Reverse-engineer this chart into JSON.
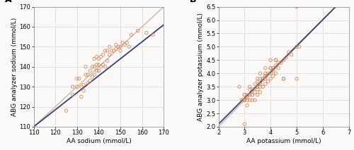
{
  "panel_A": {
    "label": "A",
    "xlabel": "AA sodium (mmol/L)",
    "ylabel": "ABG analyzer sodium (mmol/L)",
    "xlim": [
      110,
      170
    ],
    "ylim": [
      110,
      170
    ],
    "xticks": [
      110,
      120,
      130,
      140,
      150,
      160,
      170
    ],
    "yticks": [
      110,
      120,
      130,
      140,
      150,
      160,
      170
    ],
    "scatter_x": [
      125,
      128,
      128,
      130,
      130,
      131,
      132,
      132,
      133,
      133,
      134,
      134,
      135,
      135,
      136,
      136,
      137,
      137,
      138,
      138,
      138,
      139,
      139,
      139,
      140,
      140,
      140,
      141,
      141,
      142,
      142,
      143,
      143,
      144,
      144,
      145,
      145,
      146,
      147,
      148,
      148,
      149,
      150,
      150,
      151,
      152,
      153,
      154,
      155,
      158,
      162,
      165
    ],
    "scatter_y": [
      118,
      130,
      126,
      130,
      134,
      134,
      125,
      130,
      128,
      131,
      136,
      140,
      132,
      136,
      133,
      138,
      135,
      140,
      136,
      140,
      144,
      138,
      141,
      145,
      138,
      141,
      144,
      140,
      145,
      141,
      146,
      140,
      148,
      143,
      148,
      146,
      150,
      148,
      148,
      149,
      151,
      150,
      148,
      150,
      152,
      151,
      152,
      150,
      156,
      158,
      157,
      156
    ],
    "identity_line": {
      "x": [
        110,
        170
      ],
      "y": [
        110,
        170
      ],
      "color": "#c8b8a8",
      "lw": 1.0
    },
    "regression_line": {
      "x": [
        110,
        170
      ],
      "y": [
        110,
        161
      ],
      "color": "#354070",
      "lw": 1.3
    },
    "scatter_color": "none",
    "scatter_edgecolor": "#d4895a",
    "scatter_size": 10
  },
  "panel_B": {
    "label": "B",
    "xlabel": "AA potassium (mmol/L)",
    "ylabel": "ABG analyzer potassium (mmol/L)",
    "xlim": [
      2,
      7
    ],
    "ylim": [
      2.0,
      6.5
    ],
    "xticks": [
      2,
      3,
      4,
      5,
      6,
      7
    ],
    "yticks": [
      2.0,
      2.5,
      3.0,
      3.5,
      4.0,
      4.5,
      5.0,
      5.5,
      6.0,
      6.5
    ],
    "scatter_x": [
      2.8,
      3.0,
      3.0,
      3.0,
      3.1,
      3.1,
      3.1,
      3.2,
      3.2,
      3.2,
      3.3,
      3.3,
      3.3,
      3.4,
      3.4,
      3.5,
      3.5,
      3.5,
      3.6,
      3.6,
      3.6,
      3.6,
      3.7,
      3.7,
      3.8,
      3.8,
      3.8,
      3.8,
      3.9,
      3.9,
      4.0,
      4.0,
      4.0,
      4.0,
      4.1,
      4.1,
      4.2,
      4.2,
      4.3,
      4.4,
      4.5,
      4.5,
      4.6,
      4.7,
      4.8,
      5.0,
      5.0,
      5.1,
      3.0,
      3.2,
      2.9,
      3.1,
      3.4,
      3.6,
      3.7,
      4.0,
      4.2,
      4.5,
      3.3,
      3.5,
      3.8,
      4.1,
      4.3,
      2.9,
      3.0,
      3.5,
      3.8,
      4.2,
      5.0
    ],
    "scatter_y": [
      3.5,
      2.1,
      3.0,
      3.2,
      2.8,
      3.0,
      3.2,
      3.0,
      3.2,
      3.4,
      3.0,
      3.2,
      3.4,
      3.0,
      3.6,
      3.2,
      3.4,
      3.7,
      3.3,
      3.5,
      3.8,
      4.0,
      3.5,
      3.8,
      3.6,
      3.8,
      3.9,
      4.0,
      3.7,
      4.0,
      3.8,
      4.0,
      4.2,
      4.5,
      3.9,
      4.2,
      4.0,
      4.5,
      4.2,
      4.4,
      3.8,
      4.5,
      4.6,
      4.8,
      4.7,
      5.0,
      3.8,
      5.0,
      3.0,
      3.5,
      3.0,
      3.1,
      3.3,
      3.6,
      3.8,
      4.2,
      4.3,
      3.8,
      3.2,
      3.5,
      3.9,
      4.1,
      4.4,
      3.0,
      3.2,
      3.8,
      4.2,
      4.5,
      6.5
    ],
    "identity_line": {
      "x": [
        2,
        7
      ],
      "y": [
        2,
        7
      ],
      "color": "#c8b8a8",
      "lw": 1.0
    },
    "regression_line": {
      "x": [
        2.0,
        6.5
      ],
      "y": [
        2.1,
        6.5
      ],
      "color": "#354070",
      "lw": 1.3
    },
    "scatter_color": "none",
    "scatter_edgecolor": "#d4895a",
    "scatter_size": 10
  },
  "fig_background": "#faf9f7",
  "grid_color": "#d8d8d8",
  "tick_labelsize": 6,
  "axis_labelsize": 6.5,
  "label_fontsize": 9
}
